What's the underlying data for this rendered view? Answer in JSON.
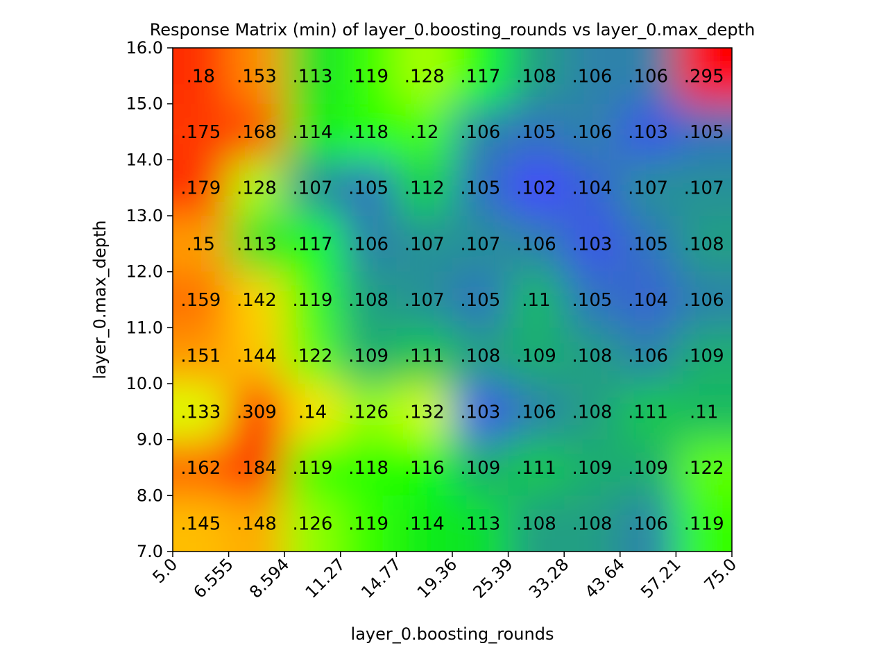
{
  "chart_data": {
    "type": "heatmap",
    "title": "Response Matrix (min) of layer_0.boosting_rounds vs layer_0.max_depth",
    "xlabel": "layer_0.boosting_rounds",
    "ylabel": "layer_0.max_depth",
    "x_ticks": [
      "5.0",
      "6.555",
      "8.594",
      "11.27",
      "14.77",
      "19.36",
      "25.39",
      "33.28",
      "43.64",
      "57.21",
      "75.0"
    ],
    "y_ticks": [
      "7.0",
      "8.0",
      "9.0",
      "10.0",
      "11.0",
      "12.0",
      "13.0",
      "14.0",
      "15.0",
      "16.0"
    ],
    "colormap": [
      "#ff0000",
      "#ffff00",
      "#00ff00",
      "#4444ff"
    ],
    "color_range": [
      0.102,
      0.309
    ],
    "rows_top_to_bottom": [
      [
        ".18",
        ".153",
        ".113",
        ".119",
        ".128",
        ".117",
        ".108",
        ".106",
        ".106",
        ".295"
      ],
      [
        ".175",
        ".168",
        ".114",
        ".118",
        ".12",
        ".106",
        ".105",
        ".106",
        ".103",
        ".105"
      ],
      [
        ".179",
        ".128",
        ".107",
        ".105",
        ".112",
        ".105",
        ".102",
        ".104",
        ".107",
        ".107"
      ],
      [
        ".15",
        ".113",
        ".117",
        ".106",
        ".107",
        ".107",
        ".106",
        ".103",
        ".105",
        ".108"
      ],
      [
        ".159",
        ".142",
        ".119",
        ".108",
        ".107",
        ".105",
        ".11",
        ".105",
        ".104",
        ".106"
      ],
      [
        ".151",
        ".144",
        ".122",
        ".109",
        ".111",
        ".108",
        ".109",
        ".108",
        ".106",
        ".109"
      ],
      [
        ".133",
        ".309",
        ".14",
        ".126",
        ".132",
        ".103",
        ".106",
        ".108",
        ".111",
        ".11"
      ],
      [
        ".162",
        ".184",
        ".119",
        ".118",
        ".116",
        ".109",
        ".111",
        ".109",
        ".109",
        ".122"
      ],
      [
        ".145",
        ".148",
        ".126",
        ".119",
        ".114",
        ".113",
        ".108",
        ".108",
        ".106",
        ".119"
      ]
    ]
  }
}
